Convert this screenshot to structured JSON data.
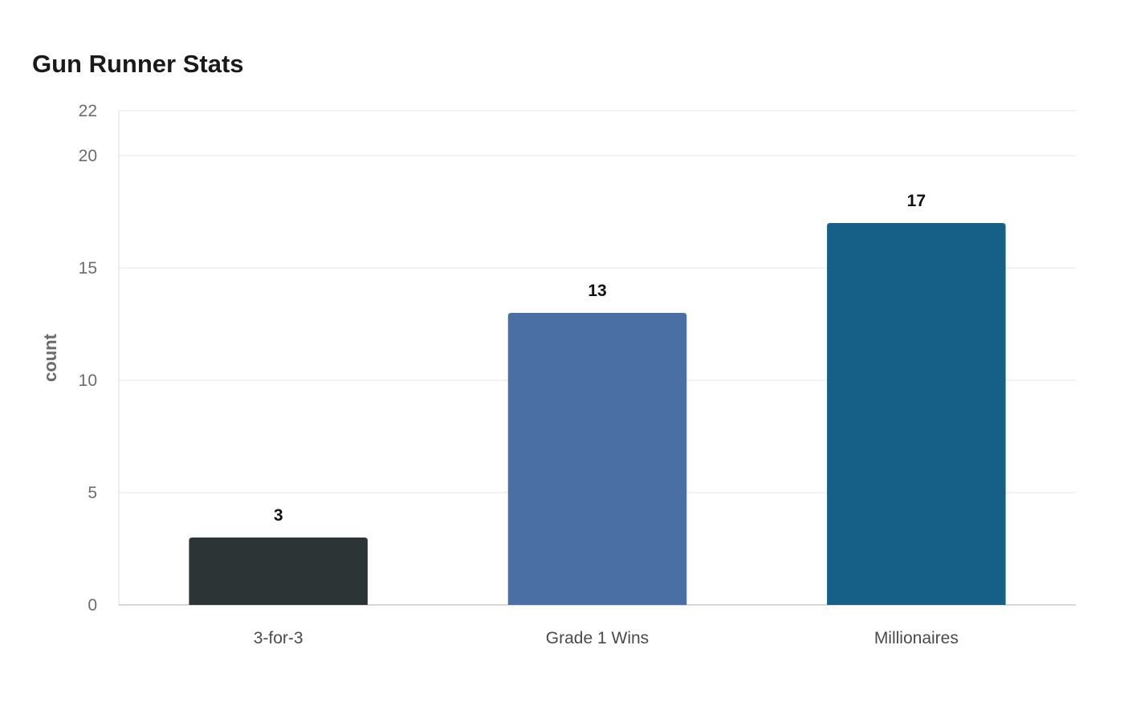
{
  "chart_data": {
    "type": "bar",
    "title": "Gun Runner Stats",
    "xlabel": "",
    "ylabel": "count",
    "categories": [
      "3-for-3",
      "Grade 1 Wins",
      "Millionaires"
    ],
    "values": [
      3,
      13,
      17
    ],
    "value_labels": [
      "3",
      "13",
      "17"
    ],
    "colors": [
      "#2d3436",
      "#4a6fa5",
      "#166088"
    ],
    "ylim": [
      0,
      22
    ],
    "yticks": [
      0,
      5,
      10,
      15,
      20,
      22
    ],
    "grid": true,
    "legend": "none"
  }
}
